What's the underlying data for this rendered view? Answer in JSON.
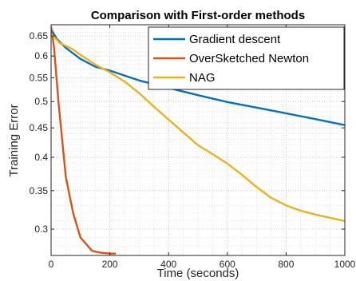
{
  "chart_data": {
    "type": "line",
    "title": "Comparison with First-order methods",
    "xlabel": "Time (seconds)",
    "ylabel": "Training Error",
    "xlim": [
      0,
      1000
    ],
    "ylim": [
      0.27,
      0.68
    ],
    "yscale": "log",
    "grid": "major-and-minor dotted",
    "legend_position": "top-right",
    "xticks": [
      0,
      200,
      400,
      600,
      800,
      1000
    ],
    "xtick_labels": [
      "0",
      "200",
      "400",
      "600",
      "800",
      "1000"
    ],
    "yticks": [
      0.3,
      0.35,
      0.4,
      0.45,
      0.5,
      0.55,
      0.6,
      0.65
    ],
    "ytick_labels": [
      "0.3",
      "0.35",
      "0.4",
      "0.45",
      "0.5",
      "0.55",
      "0.6",
      "0.65"
    ],
    "series": [
      {
        "name": "Gradient descent",
        "color": "#0072bd",
        "x": [
          0,
          20,
          50,
          100,
          150,
          200,
          250,
          300,
          400,
          500,
          600,
          700,
          800,
          900,
          1000
        ],
        "y": [
          0.668,
          0.642,
          0.62,
          0.593,
          0.575,
          0.566,
          0.555,
          0.544,
          0.528,
          0.513,
          0.499,
          0.488,
          0.477,
          0.466,
          0.455
        ]
      },
      {
        "name": "OverSketched Newton",
        "color": "#d95319",
        "x": [
          0,
          10,
          25,
          50,
          75,
          100,
          140,
          170,
          200,
          220
        ],
        "y": [
          0.675,
          0.62,
          0.5,
          0.37,
          0.32,
          0.29,
          0.275,
          0.273,
          0.272,
          0.272
        ]
      },
      {
        "name": "NAG",
        "color": "#edb120",
        "x": [
          0,
          30,
          70,
          100,
          150,
          200,
          250,
          300,
          350,
          400,
          450,
          500,
          550,
          600,
          650,
          700,
          750,
          800,
          850,
          900,
          950,
          1000
        ],
        "y": [
          0.655,
          0.632,
          0.618,
          0.603,
          0.58,
          0.562,
          0.542,
          0.517,
          0.49,
          0.465,
          0.442,
          0.42,
          0.405,
          0.39,
          0.373,
          0.355,
          0.34,
          0.33,
          0.323,
          0.318,
          0.314,
          0.31
        ]
      }
    ]
  }
}
